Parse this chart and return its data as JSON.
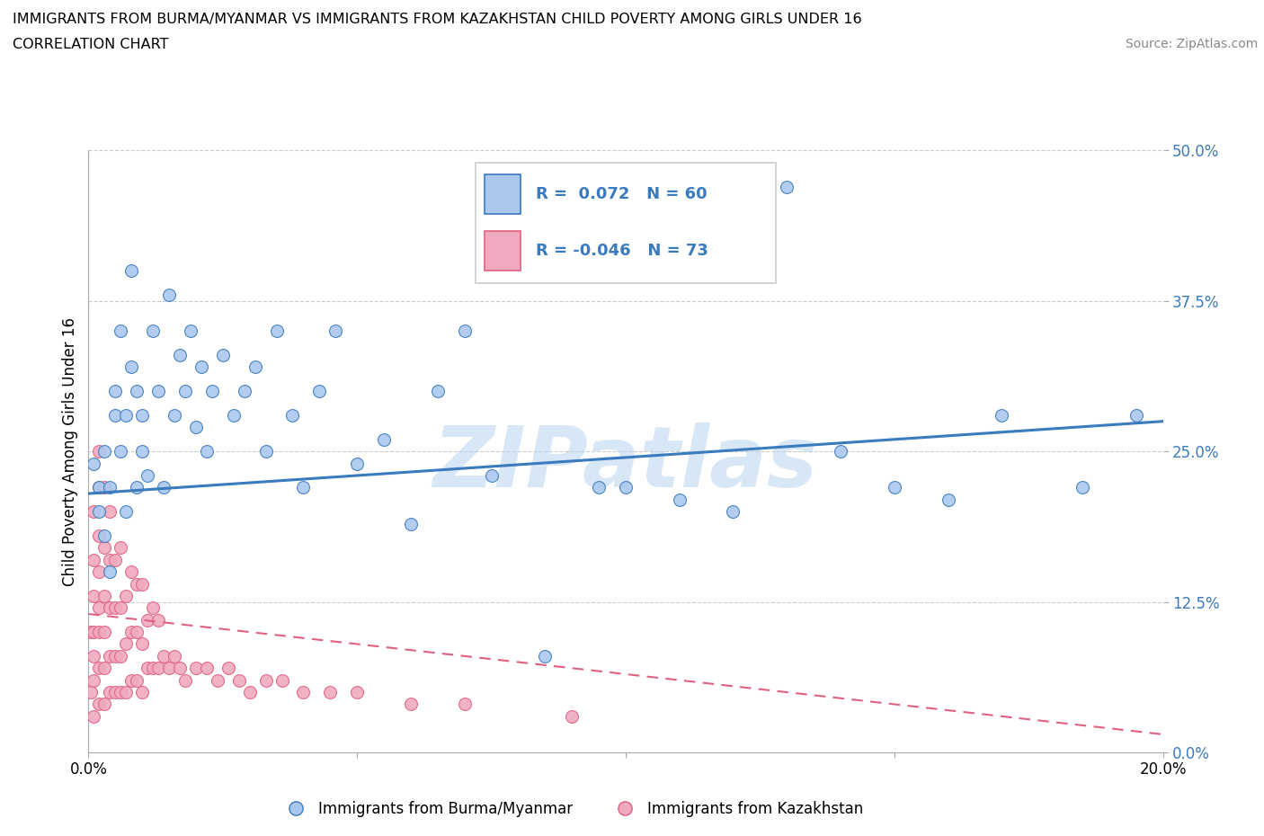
{
  "title_line1": "IMMIGRANTS FROM BURMA/MYANMAR VS IMMIGRANTS FROM KAZAKHSTAN CHILD POVERTY AMONG GIRLS UNDER 16",
  "title_line2": "CORRELATION CHART",
  "source": "Source: ZipAtlas.com",
  "ylabel": "Child Poverty Among Girls Under 16",
  "r_burma": 0.072,
  "n_burma": 60,
  "r_kazakh": -0.046,
  "n_kazakh": 73,
  "color_burma": "#aac8ee",
  "color_kazakh": "#f0aac0",
  "line_color_burma": "#3a7abf",
  "line_color_kazakh": "#e06080",
  "tick_color": "#3a7abf",
  "watermark": "ZIPatlas",
  "xlim": [
    0.0,
    0.2
  ],
  "ylim": [
    0.0,
    0.5
  ],
  "yticks": [
    0.0,
    0.125,
    0.25,
    0.375,
    0.5
  ],
  "ytick_labels": [
    "0.0%",
    "12.5%",
    "25.0%",
    "37.5%",
    "50.0%"
  ],
  "xticks": [
    0.0,
    0.05,
    0.1,
    0.15,
    0.2
  ],
  "xtick_labels": [
    "0.0%",
    "",
    "",
    "",
    "20.0%"
  ],
  "legend_label_burma": "Immigrants from Burma/Myanmar",
  "legend_label_kazakh": "Immigrants from Kazakhstan",
  "burma_x": [
    0.001,
    0.002,
    0.002,
    0.003,
    0.003,
    0.004,
    0.004,
    0.005,
    0.005,
    0.006,
    0.006,
    0.007,
    0.007,
    0.008,
    0.008,
    0.009,
    0.009,
    0.01,
    0.01,
    0.011,
    0.012,
    0.013,
    0.014,
    0.015,
    0.016,
    0.017,
    0.018,
    0.019,
    0.02,
    0.021,
    0.022,
    0.023,
    0.025,
    0.027,
    0.029,
    0.031,
    0.033,
    0.035,
    0.038,
    0.04,
    0.043,
    0.046,
    0.05,
    0.055,
    0.06,
    0.065,
    0.07,
    0.075,
    0.085,
    0.095,
    0.1,
    0.11,
    0.12,
    0.13,
    0.14,
    0.15,
    0.16,
    0.17,
    0.185,
    0.195
  ],
  "burma_y": [
    0.24,
    0.22,
    0.2,
    0.18,
    0.25,
    0.15,
    0.22,
    0.28,
    0.3,
    0.25,
    0.35,
    0.2,
    0.28,
    0.4,
    0.32,
    0.22,
    0.3,
    0.25,
    0.28,
    0.23,
    0.35,
    0.3,
    0.22,
    0.38,
    0.28,
    0.33,
    0.3,
    0.35,
    0.27,
    0.32,
    0.25,
    0.3,
    0.33,
    0.28,
    0.3,
    0.32,
    0.25,
    0.35,
    0.28,
    0.22,
    0.3,
    0.35,
    0.24,
    0.26,
    0.19,
    0.3,
    0.35,
    0.23,
    0.08,
    0.22,
    0.22,
    0.21,
    0.2,
    0.47,
    0.25,
    0.22,
    0.21,
    0.28,
    0.22,
    0.28
  ],
  "kazakh_x": [
    0.0005,
    0.0005,
    0.001,
    0.001,
    0.001,
    0.001,
    0.001,
    0.001,
    0.001,
    0.002,
    0.002,
    0.002,
    0.002,
    0.002,
    0.002,
    0.002,
    0.002,
    0.003,
    0.003,
    0.003,
    0.003,
    0.003,
    0.003,
    0.004,
    0.004,
    0.004,
    0.004,
    0.004,
    0.005,
    0.005,
    0.005,
    0.005,
    0.006,
    0.006,
    0.006,
    0.006,
    0.007,
    0.007,
    0.007,
    0.008,
    0.008,
    0.008,
    0.009,
    0.009,
    0.009,
    0.01,
    0.01,
    0.01,
    0.011,
    0.011,
    0.012,
    0.012,
    0.013,
    0.013,
    0.014,
    0.015,
    0.016,
    0.017,
    0.018,
    0.02,
    0.022,
    0.024,
    0.026,
    0.028,
    0.03,
    0.033,
    0.036,
    0.04,
    0.045,
    0.05,
    0.06,
    0.07,
    0.09
  ],
  "kazakh_y": [
    0.05,
    0.1,
    0.03,
    0.06,
    0.08,
    0.1,
    0.13,
    0.16,
    0.2,
    0.04,
    0.07,
    0.1,
    0.12,
    0.15,
    0.18,
    0.22,
    0.25,
    0.04,
    0.07,
    0.1,
    0.13,
    0.17,
    0.22,
    0.05,
    0.08,
    0.12,
    0.16,
    0.2,
    0.05,
    0.08,
    0.12,
    0.16,
    0.05,
    0.08,
    0.12,
    0.17,
    0.05,
    0.09,
    0.13,
    0.06,
    0.1,
    0.15,
    0.06,
    0.1,
    0.14,
    0.05,
    0.09,
    0.14,
    0.07,
    0.11,
    0.07,
    0.12,
    0.07,
    0.11,
    0.08,
    0.07,
    0.08,
    0.07,
    0.06,
    0.07,
    0.07,
    0.06,
    0.07,
    0.06,
    0.05,
    0.06,
    0.06,
    0.05,
    0.05,
    0.05,
    0.04,
    0.04,
    0.03
  ]
}
